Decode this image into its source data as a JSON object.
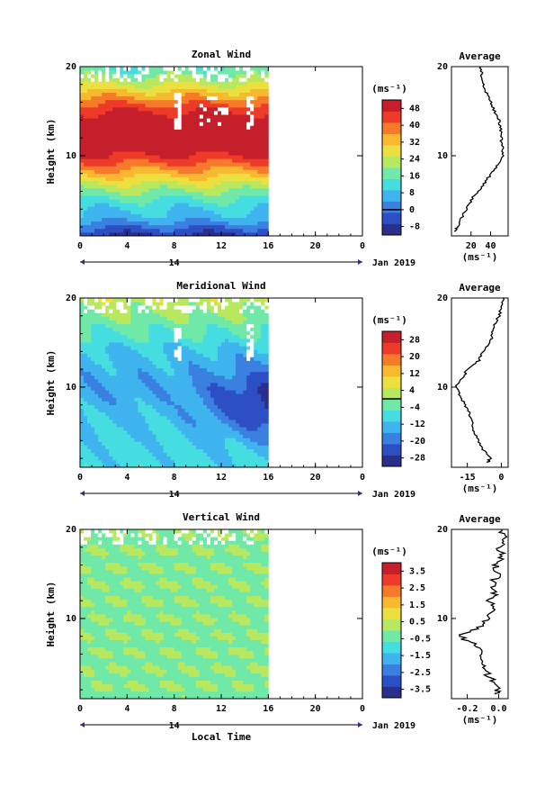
{
  "chart_data": [
    {
      "type": "heatmap",
      "title": "Zonal Wind",
      "ylabel": "Height (km)",
      "xlabel": "",
      "xticks": [
        "0",
        "4",
        "8",
        "12",
        "16",
        "20",
        "0"
      ],
      "yticks": [
        "10",
        "20"
      ],
      "xlim": [
        0,
        24
      ],
      "ylim": [
        1,
        20
      ],
      "data_x_end": 16,
      "date_label": "14",
      "month_label": "Jan 2019",
      "colorbar_unit": "(ms⁻¹)",
      "colorbar_ticks": [
        "-8",
        "0",
        "8",
        "16",
        "24",
        "32",
        "40",
        "48"
      ],
      "colorbar_min": -12,
      "colorbar_max": 52,
      "zero_line": 0,
      "avg_title": "Average",
      "avg_xticks": [
        "20",
        "40"
      ],
      "avg_xlabel": "(ms⁻¹)",
      "avg_xlim": [
        0,
        58
      ],
      "profile_levels": [
        {
          "height": 1.5,
          "value": 4
        },
        {
          "height": 2,
          "value": 6
        },
        {
          "height": 3,
          "value": 10
        },
        {
          "height": 4,
          "value": 15
        },
        {
          "height": 5,
          "value": 20
        },
        {
          "height": 6,
          "value": 27
        },
        {
          "height": 7,
          "value": 34
        },
        {
          "height": 8,
          "value": 41
        },
        {
          "height": 9,
          "value": 47
        },
        {
          "height": 10,
          "value": 52
        },
        {
          "height": 11,
          "value": 52
        },
        {
          "height": 12,
          "value": 51
        },
        {
          "height": 13,
          "value": 50
        },
        {
          "height": 14,
          "value": 49
        },
        {
          "height": 15,
          "value": 44
        },
        {
          "height": 16,
          "value": 40
        },
        {
          "height": 17,
          "value": 36
        },
        {
          "height": 18,
          "value": 33
        },
        {
          "height": 19,
          "value": 31
        },
        {
          "height": 20,
          "value": 30
        }
      ]
    },
    {
      "type": "heatmap",
      "title": "Meridional Wind",
      "ylabel": "Height (km)",
      "xlabel": "",
      "xticks": [
        "0",
        "4",
        "8",
        "12",
        "16",
        "20",
        "0"
      ],
      "yticks": [
        "10",
        "20"
      ],
      "xlim": [
        0,
        24
      ],
      "ylim": [
        1,
        20
      ],
      "data_x_end": 16,
      "date_label": "14",
      "month_label": "Jan 2019",
      "colorbar_unit": "(ms⁻¹)",
      "colorbar_ticks": [
        "-28",
        "-20",
        "-12",
        "-4",
        "4",
        "12",
        "20",
        "28"
      ],
      "colorbar_min": -32,
      "colorbar_max": 32,
      "zero_line": 0,
      "avg_title": "Average",
      "avg_xticks": [
        "-15",
        "0"
      ],
      "avg_xlabel": "(ms⁻¹)",
      "avg_xlim": [
        -22,
        3
      ],
      "profile_levels": [
        {
          "height": 1.5,
          "value": -6
        },
        {
          "height": 2,
          "value": -5
        },
        {
          "height": 3,
          "value": -8
        },
        {
          "height": 4,
          "value": -10
        },
        {
          "height": 5,
          "value": -12
        },
        {
          "height": 6,
          "value": -13
        },
        {
          "height": 7,
          "value": -14
        },
        {
          "height": 8,
          "value": -16
        },
        {
          "height": 9,
          "value": -18
        },
        {
          "height": 10,
          "value": -20
        },
        {
          "height": 11,
          "value": -17
        },
        {
          "height": 12,
          "value": -15
        },
        {
          "height": 13,
          "value": -10
        },
        {
          "height": 14,
          "value": -8
        },
        {
          "height": 15,
          "value": -5
        },
        {
          "height": 16,
          "value": -4
        },
        {
          "height": 17,
          "value": -3
        },
        {
          "height": 18,
          "value": -1
        },
        {
          "height": 19,
          "value": 0
        },
        {
          "height": 20,
          "value": 1
        }
      ]
    },
    {
      "type": "heatmap",
      "title": "Vertical Wind",
      "ylabel": "Height (km)",
      "xlabel": "Local Time",
      "xticks": [
        "0",
        "4",
        "8",
        "12",
        "16",
        "20",
        "0"
      ],
      "yticks": [
        "10",
        "20"
      ],
      "xlim": [
        0,
        24
      ],
      "ylim": [
        1,
        20
      ],
      "data_x_end": 16,
      "date_label": "14",
      "month_label": "Jan 2019",
      "colorbar_unit": "(ms⁻¹)",
      "colorbar_ticks": [
        "-3.5",
        "-2.5",
        "-1.5",
        "-0.5",
        "0.5",
        "1.5",
        "2.5",
        "3.5"
      ],
      "colorbar_min": -4,
      "colorbar_max": 4,
      "zero_line": null,
      "avg_title": "Average",
      "avg_xticks": [
        "-0.2",
        "0.0"
      ],
      "avg_xlabel": "(ms⁻¹)",
      "avg_xlim": [
        -0.3,
        0.06
      ],
      "profile_levels": [
        {
          "height": 1.5,
          "value": -0.02
        },
        {
          "height": 2,
          "value": 0.0
        },
        {
          "height": 3,
          "value": -0.04
        },
        {
          "height": 4,
          "value": -0.08
        },
        {
          "height": 5,
          "value": -0.1
        },
        {
          "height": 6,
          "value": -0.12
        },
        {
          "height": 7,
          "value": -0.15
        },
        {
          "height": 8,
          "value": -0.25
        },
        {
          "height": 9,
          "value": -0.12
        },
        {
          "height": 10,
          "value": -0.08
        },
        {
          "height": 11,
          "value": -0.04
        },
        {
          "height": 12,
          "value": -0.06
        },
        {
          "height": 13,
          "value": -0.02
        },
        {
          "height": 14,
          "value": -0.04
        },
        {
          "height": 15,
          "value": 0.0
        },
        {
          "height": 16,
          "value": -0.02
        },
        {
          "height": 17,
          "value": 0.02
        },
        {
          "height": 18,
          "value": 0.0
        },
        {
          "height": 19,
          "value": 0.04
        },
        {
          "height": 20,
          "value": 0.02
        }
      ]
    }
  ],
  "colors": {
    "scale": [
      "#2b2f8c",
      "#2d4fc4",
      "#3a80e0",
      "#3fb4ee",
      "#46dde0",
      "#70e8a8",
      "#b8e860",
      "#ece040",
      "#f8b830",
      "#f67a2a",
      "#ee3a28",
      "#c41f2a"
    ],
    "missing": "#ffffff",
    "axis": "#000000"
  }
}
